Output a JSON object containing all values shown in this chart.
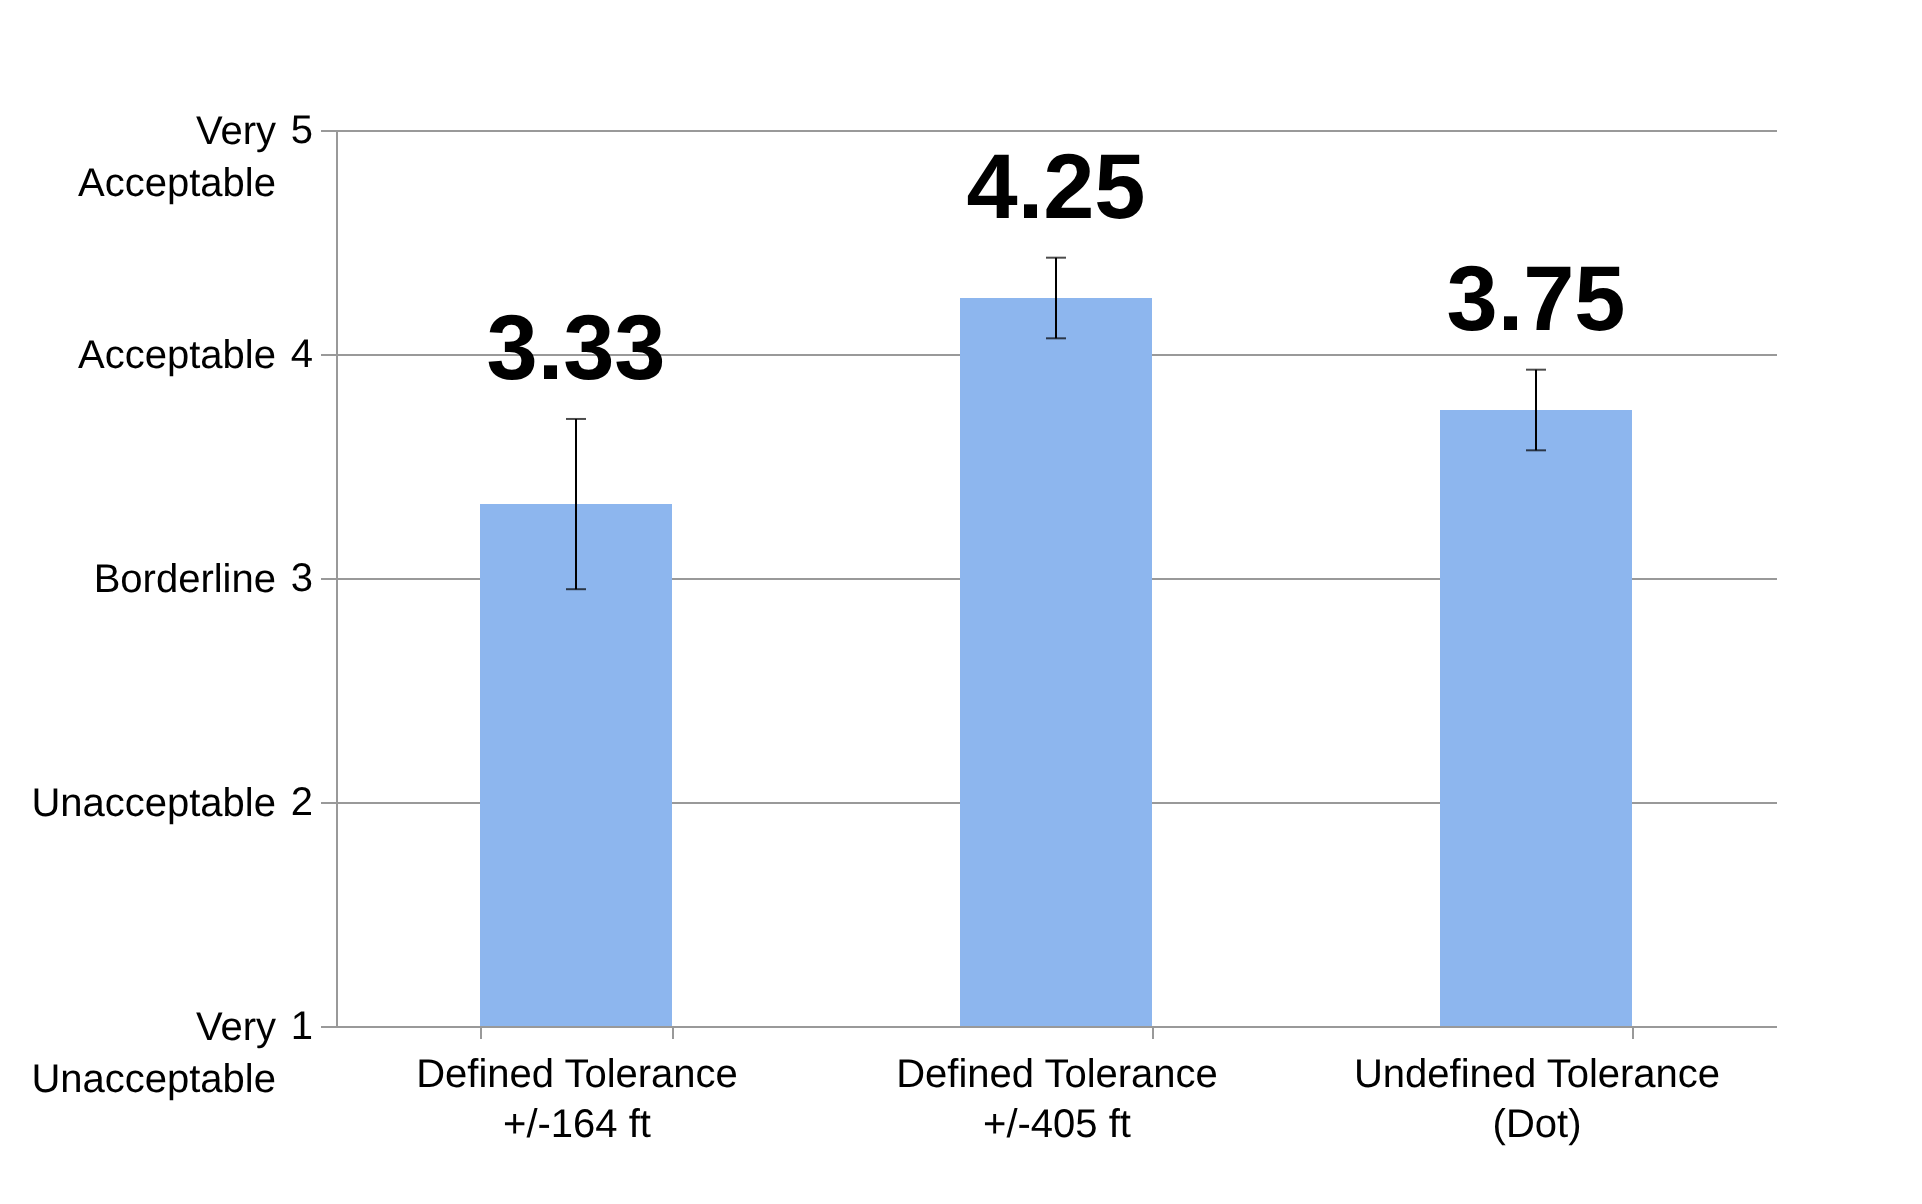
{
  "chart_data": {
    "type": "bar",
    "categories": [
      "Defined Tolerance\n+/-164 ft",
      "Defined Tolerance\n+/-405 ft",
      "Undefined Tolerance\n(Dot)"
    ],
    "values": [
      3.33,
      4.25,
      3.75
    ],
    "errors": [
      0.38,
      0.18,
      0.18
    ],
    "color": "#8db6ee",
    "data_labels": true,
    "ylim": [
      1,
      5
    ],
    "yticks": [
      1,
      2,
      3,
      4,
      5
    ],
    "annotations": [
      "Very\nUnacceptable",
      "Unacceptable",
      "Borderline",
      "Acceptable",
      "Very\nAcceptable"
    ],
    "grid": "y"
  }
}
